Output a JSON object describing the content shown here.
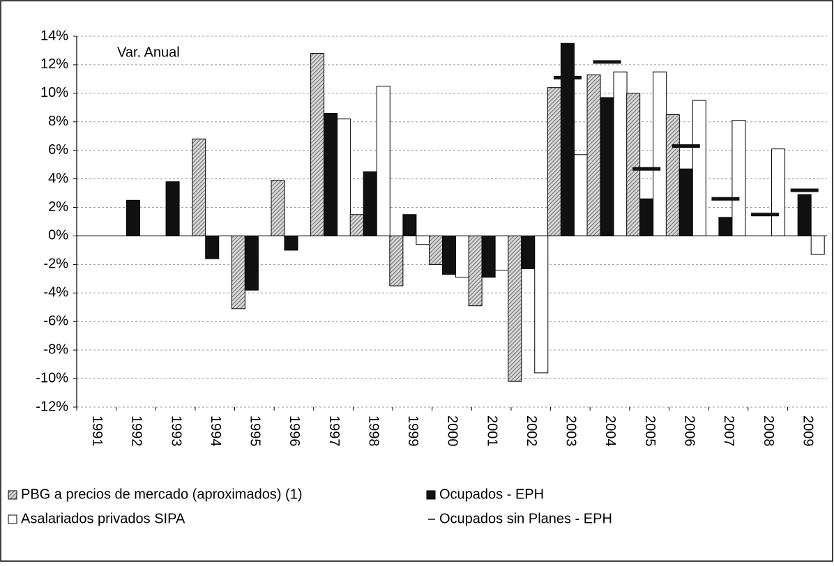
{
  "chart_data": {
    "type": "bar",
    "annotation": "Var. Anual",
    "categories": [
      "1991",
      "1992",
      "1993",
      "1994",
      "1995",
      "1996",
      "1997",
      "1998",
      "1999",
      "2000",
      "2001",
      "2002",
      "2003",
      "2004",
      "2005",
      "2006",
      "2007",
      "2008",
      "2009"
    ],
    "series": [
      {
        "name": "PBG a precios de mercado (aproximados) (1)",
        "color": "#999999",
        "hatch": true,
        "values": [
          null,
          null,
          null,
          6.8,
          -5.1,
          3.9,
          12.8,
          1.5,
          -3.5,
          -2.0,
          -4.9,
          -10.2,
          10.4,
          11.3,
          10.0,
          8.5,
          null,
          null,
          null
        ]
      },
      {
        "name": "Ocupados - EPH",
        "color": "#111111",
        "values": [
          null,
          2.5,
          3.8,
          -1.6,
          -3.8,
          -1.0,
          8.6,
          4.5,
          1.5,
          -2.7,
          -2.9,
          -2.3,
          13.5,
          9.7,
          2.6,
          4.7,
          1.3,
          null,
          2.9
        ]
      },
      {
        "name": "Asalariados privados SIPA",
        "color": "#ffffff",
        "values": [
          null,
          null,
          null,
          null,
          null,
          null,
          8.2,
          10.5,
          -0.6,
          -2.9,
          -2.4,
          -9.6,
          5.7,
          11.5,
          11.5,
          9.5,
          8.1,
          6.1,
          -1.3
        ]
      },
      {
        "name": "Ocupados sin Planes - EPH",
        "color": "#111111",
        "marker": "dash",
        "values": [
          null,
          null,
          null,
          null,
          null,
          null,
          null,
          null,
          null,
          null,
          null,
          null,
          11.1,
          12.2,
          4.7,
          6.3,
          2.6,
          1.5,
          3.2
        ]
      }
    ],
    "ylim": [
      -12,
      14
    ],
    "yticks": [
      {
        "value": -12,
        "label": "-12%"
      },
      {
        "value": -10,
        "label": "-10%"
      },
      {
        "value": -8,
        "label": "-8%"
      },
      {
        "value": -6,
        "label": "-6%"
      },
      {
        "value": -4,
        "label": "-4%"
      },
      {
        "value": -2,
        "label": "-2%"
      },
      {
        "value": 0,
        "label": "0%"
      },
      {
        "value": 2,
        "label": "2%"
      },
      {
        "value": 4,
        "label": "4%"
      },
      {
        "value": 6,
        "label": "6%"
      },
      {
        "value": 8,
        "label": "8%"
      },
      {
        "value": 10,
        "label": "10%"
      },
      {
        "value": 12,
        "label": "12%"
      },
      {
        "value": 14,
        "label": "14%"
      }
    ],
    "grid": true
  }
}
